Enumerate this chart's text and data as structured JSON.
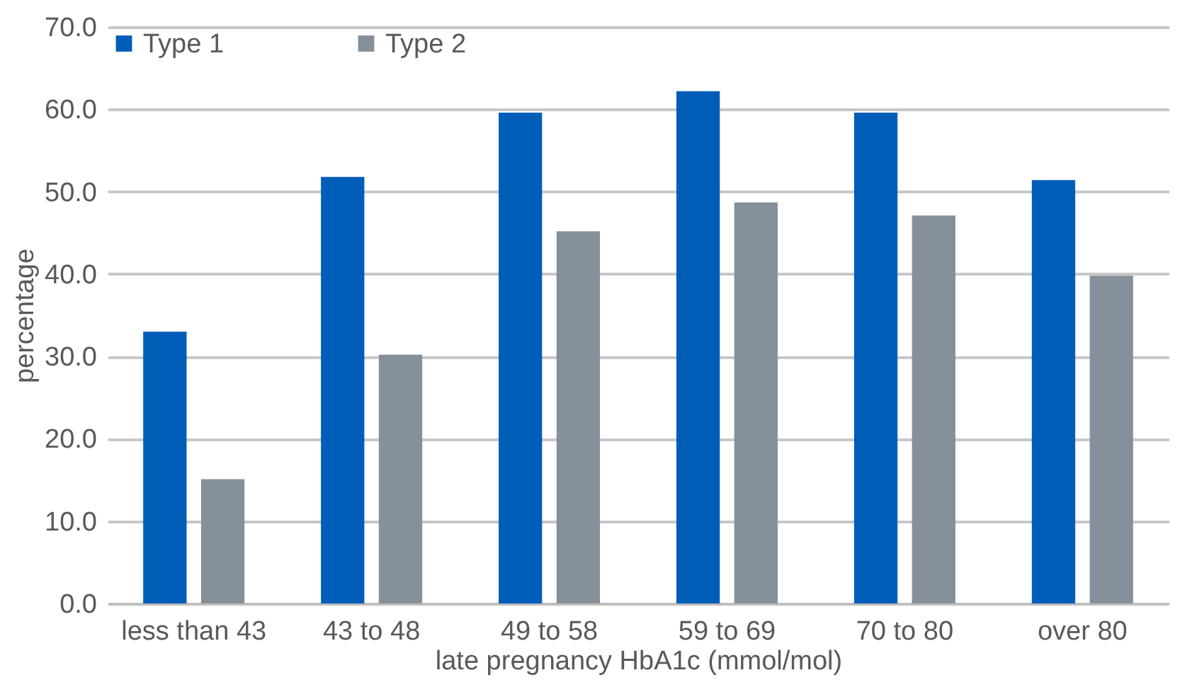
{
  "chart_data": {
    "type": "bar",
    "xlabel": "late pregnancy HbA1c  (mmol/mol)",
    "ylabel": "percentage",
    "categories": [
      "less than 43",
      "43 to 48",
      "49 to 58",
      "59 to 69",
      "70 to 80",
      "over 80"
    ],
    "series": [
      {
        "name": "Type 1",
        "color": "#005eb8",
        "values": [
          33.0,
          51.8,
          59.6,
          62.2,
          59.6,
          51.4
        ]
      },
      {
        "name": "Type 2",
        "color": "#86909b",
        "values": [
          15.1,
          30.2,
          45.2,
          48.7,
          47.1,
          39.8
        ]
      }
    ],
    "ylim": [
      0,
      70
    ],
    "yticks": [
      {
        "value": 0,
        "label": "0.0"
      },
      {
        "value": 10,
        "label": "10.0"
      },
      {
        "value": 20,
        "label": "20.0"
      },
      {
        "value": 30,
        "label": "30.0"
      },
      {
        "value": 40,
        "label": "40.0"
      },
      {
        "value": 50,
        "label": "50.0"
      },
      {
        "value": 60,
        "label": "60.0"
      },
      {
        "value": 70,
        "label": "70.0"
      }
    ],
    "grid": "y",
    "legend": "top left"
  }
}
